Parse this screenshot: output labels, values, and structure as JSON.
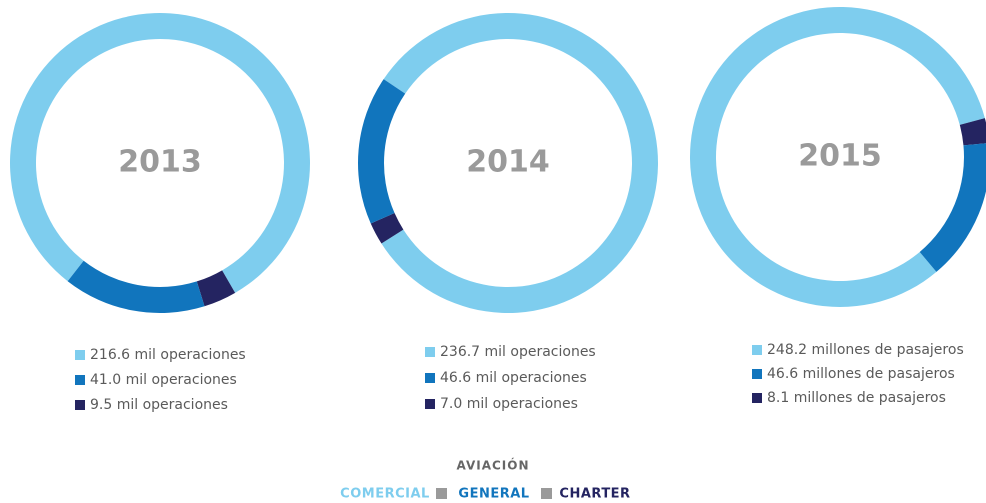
{
  "chart_data": [
    {
      "type": "pie",
      "title": "2013",
      "values": [
        216.6,
        41.0,
        9.5
      ],
      "value_labels": [
        "216.6 mil operaciones",
        "41.0 mil operaciones",
        "9.5 mil operaciones"
      ],
      "colors": [
        "#7ecdee",
        "#1175bd",
        "#242461"
      ]
    },
    {
      "type": "pie",
      "title": "2014",
      "values": [
        236.7,
        46.6,
        7.0
      ],
      "value_labels": [
        "236.7 mil operaciones",
        "46.6 mil operaciones",
        "7.0 mil operaciones"
      ],
      "colors": [
        "#7ecdee",
        "#1175bd",
        "#242461"
      ]
    },
    {
      "type": "pie",
      "title": "2015",
      "values": [
        248.2,
        46.6,
        8.1
      ],
      "value_labels": [
        "248.2 millones de pasajeros",
        "46.6 millones de pasajeros",
        "8.1 millones de pasajeros"
      ],
      "colors": [
        "#7ecdee",
        "#1175bd",
        "#242461"
      ]
    }
  ],
  "legend": {
    "title": "AVIACIÓN",
    "items": [
      "COMERCIAL",
      "GENERAL",
      "CHARTER"
    ],
    "colors": [
      "#7ecdee",
      "#1175bd",
      "#242461"
    ]
  }
}
